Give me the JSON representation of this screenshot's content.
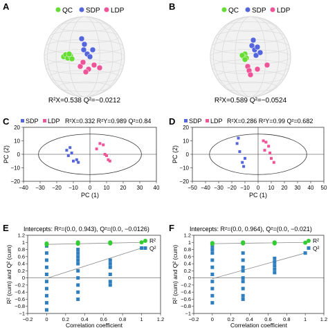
{
  "colors": {
    "qc": "#66dd33",
    "sdp": "#5566dd",
    "ldp": "#ee5599",
    "sphere": "#e6e6e6",
    "axis": "#333333",
    "line": "#888888",
    "r2": "#33cc33",
    "q2": "#2f7fbf"
  },
  "panels": [
    {
      "letter": "A",
      "legend": [
        "QC",
        "SDP",
        "LDP"
      ],
      "stats_text": "R²X=0.538  Q²=−0.0212",
      "chart_data": {
        "type": "scatter",
        "title": "",
        "points_note": "3D PCA score plot"
      }
    },
    {
      "letter": "B",
      "legend": [
        "QC",
        "SDP",
        "LDP"
      ],
      "stats_text": "R²X=0.589  Q²=−0.0524",
      "chart_data": {
        "type": "scatter",
        "title": ""
      }
    },
    {
      "letter": "C",
      "header": {
        "sdp": "SDP",
        "ldp": "LDP",
        "stats": "R²X=0.332  R²Y=0.989  Q²=0.84"
      },
      "chart_data": {
        "type": "scatter",
        "xlabel": "PC (1)",
        "ylabel": "PC (2)",
        "xlim": [
          -40,
          40
        ],
        "ylim": [
          -20,
          20
        ],
        "xticks": [
          -40,
          -30,
          -20,
          -10,
          0,
          10,
          20,
          30,
          40
        ],
        "yticks": [
          -20,
          -10,
          0,
          10,
          20
        ],
        "ellipse": {
          "rx": 31,
          "ry": 15
        },
        "series": [
          {
            "name": "SDP",
            "points": [
              [
                -12,
                5
              ],
              [
                -14,
                3
              ],
              [
                -11,
                1
              ],
              [
                -13,
                -1
              ],
              [
                -10,
                -5
              ],
              [
                -8,
                -4
              ],
              [
                -7,
                -6
              ]
            ]
          },
          {
            "name": "LDP",
            "points": [
              [
                6,
                8
              ],
              [
                8,
                7
              ],
              [
                4,
                4
              ],
              [
                9,
                0
              ],
              [
                10,
                -1
              ],
              [
                11,
                -4
              ],
              [
                12,
                -5
              ]
            ]
          }
        ]
      }
    },
    {
      "letter": "D",
      "header": {
        "sdp": "SDP",
        "ldp": "LDP",
        "stats": "R²X=0.286  R²Y=0.99  Q²=0.682"
      },
      "chart_data": {
        "type": "scatter",
        "xlabel": "PC (1)",
        "ylabel": "PC (2)",
        "xlim": [
          -50,
          50
        ],
        "ylim": [
          -20,
          20
        ],
        "xticks": [
          -50,
          -40,
          -30,
          -20,
          -10,
          0,
          10,
          20,
          30,
          40,
          50
        ],
        "yticks": [
          -20,
          -10,
          0,
          10,
          20
        ],
        "ellipse": {
          "rx": 37,
          "ry": 15
        },
        "series": [
          {
            "name": "SDP",
            "points": [
              [
                -15,
                12
              ],
              [
                -16,
                8
              ],
              [
                -14,
                2
              ],
              [
                -10,
                -3
              ],
              [
                -12,
                -6
              ],
              [
                -11,
                -9
              ]
            ]
          },
          {
            "name": "LDP",
            "points": [
              [
                4,
                10
              ],
              [
                6,
                9
              ],
              [
                8,
                6
              ],
              [
                5,
                3
              ],
              [
                9,
                1
              ],
              [
                10,
                -3
              ],
              [
                12,
                -6
              ]
            ]
          }
        ]
      }
    },
    {
      "letter": "E",
      "intercepts_text": "Intercepts: R²=(0.0, 0.943), Q²=(0.0, −0.0126)",
      "legend": [
        "R²",
        "Q²"
      ],
      "chart_data": {
        "type": "scatter",
        "xlabel": "Correlation coefficient",
        "ylabel": "R² (cum) and Q² (cum)",
        "xlim": [
          -0.2,
          1.2
        ],
        "ylim": [
          -1.0,
          1.2
        ],
        "xticks": [
          -0.2,
          0,
          0.2,
          0.4,
          0.6,
          0.8,
          1.0,
          1.2
        ],
        "yticks": [
          -1.0,
          -0.8,
          -0.6,
          -0.4,
          -0.2,
          0,
          0.2,
          0.4,
          0.6,
          0.8,
          1.0,
          1.2
        ],
        "series": [
          {
            "name": "R²",
            "x": [
              0,
              0,
              0.33,
              0.33,
              0.33,
              0.67,
              0.67,
              0.67,
              1.0
            ],
            "y": [
              0.94,
              0.97,
              0.96,
              0.98,
              1.0,
              0.97,
              0.99,
              1.0,
              1.0
            ]
          },
          {
            "name": "Q²",
            "x": [
              0,
              0,
              0,
              0,
              0,
              0,
              0,
              0,
              0,
              0,
              0.33,
              0.33,
              0.33,
              0.33,
              0.33,
              0.33,
              0.33,
              0.33,
              0.33,
              0.33,
              0.67,
              0.67,
              0.67,
              0.67,
              0.67,
              0.67,
              1.0
            ],
            "y": [
              0.9,
              0.7,
              0.5,
              0.3,
              0.1,
              -0.1,
              -0.3,
              -0.5,
              -0.7,
              -0.9,
              0.8,
              0.7,
              0.6,
              0.5,
              0.4,
              0.2,
              0.0,
              -0.2,
              -0.4,
              -0.6,
              0.5,
              0.4,
              0.3,
              0.1,
              -0.1,
              -0.2,
              0.84
            ]
          }
        ],
        "regression": {
          "r2": [
            [
              0,
              0.943
            ],
            [
              1.0,
              1.0
            ]
          ],
          "q2": [
            [
              0,
              -0.0126
            ],
            [
              1.0,
              0.84
            ]
          ]
        }
      }
    },
    {
      "letter": "F",
      "intercepts_text": "Intercepts: R²=(0.0, 0.964), Q²=(0.0, −0.021)",
      "legend": [
        "R²",
        "Q²"
      ],
      "chart_data": {
        "type": "scatter",
        "xlabel": "Correlation coefficient",
        "ylabel": "R² (cum) and Q² (cum)",
        "xlim": [
          -0.2,
          1.2
        ],
        "ylim": [
          -1.0,
          1.2
        ],
        "xticks": [
          -0.2,
          0,
          0.2,
          0.4,
          0.6,
          0.8,
          1.0,
          1.2
        ],
        "yticks": [
          -1.0,
          -0.8,
          -0.6,
          -0.4,
          -0.2,
          0,
          0.2,
          0.4,
          0.6,
          0.8,
          1.0,
          1.2
        ],
        "series": [
          {
            "name": "R²",
            "x": [
              0,
              0,
              0.33,
              0.33,
              0.33,
              0.67,
              0.67,
              0.67,
              1.0
            ],
            "y": [
              0.96,
              0.98,
              0.97,
              0.99,
              1.0,
              0.97,
              0.99,
              1.0,
              0.99
            ]
          },
          {
            "name": "Q²",
            "x": [
              0,
              0,
              0,
              0,
              0,
              0,
              0,
              0,
              0,
              0,
              0.33,
              0.33,
              0.33,
              0.33,
              0.33,
              0.33,
              0.33,
              0.33,
              0.33,
              0.67,
              0.67,
              0.67,
              0.67,
              0.67,
              1.0
            ],
            "y": [
              0.9,
              0.7,
              0.5,
              0.3,
              0.1,
              -0.1,
              -0.3,
              -0.5,
              -0.7,
              0.8,
              0.7,
              0.5,
              0.3,
              0.2,
              0.0,
              -0.1,
              -0.3,
              -0.5,
              -0.6,
              0.55,
              0.45,
              0.35,
              0.25,
              0.15,
              0.7
            ]
          }
        ],
        "regression": {
          "r2": [
            [
              0,
              0.964
            ],
            [
              1.0,
              1.0
            ]
          ],
          "q2": [
            [
              0,
              -0.021
            ],
            [
              1.0,
              0.7
            ]
          ]
        }
      }
    }
  ]
}
